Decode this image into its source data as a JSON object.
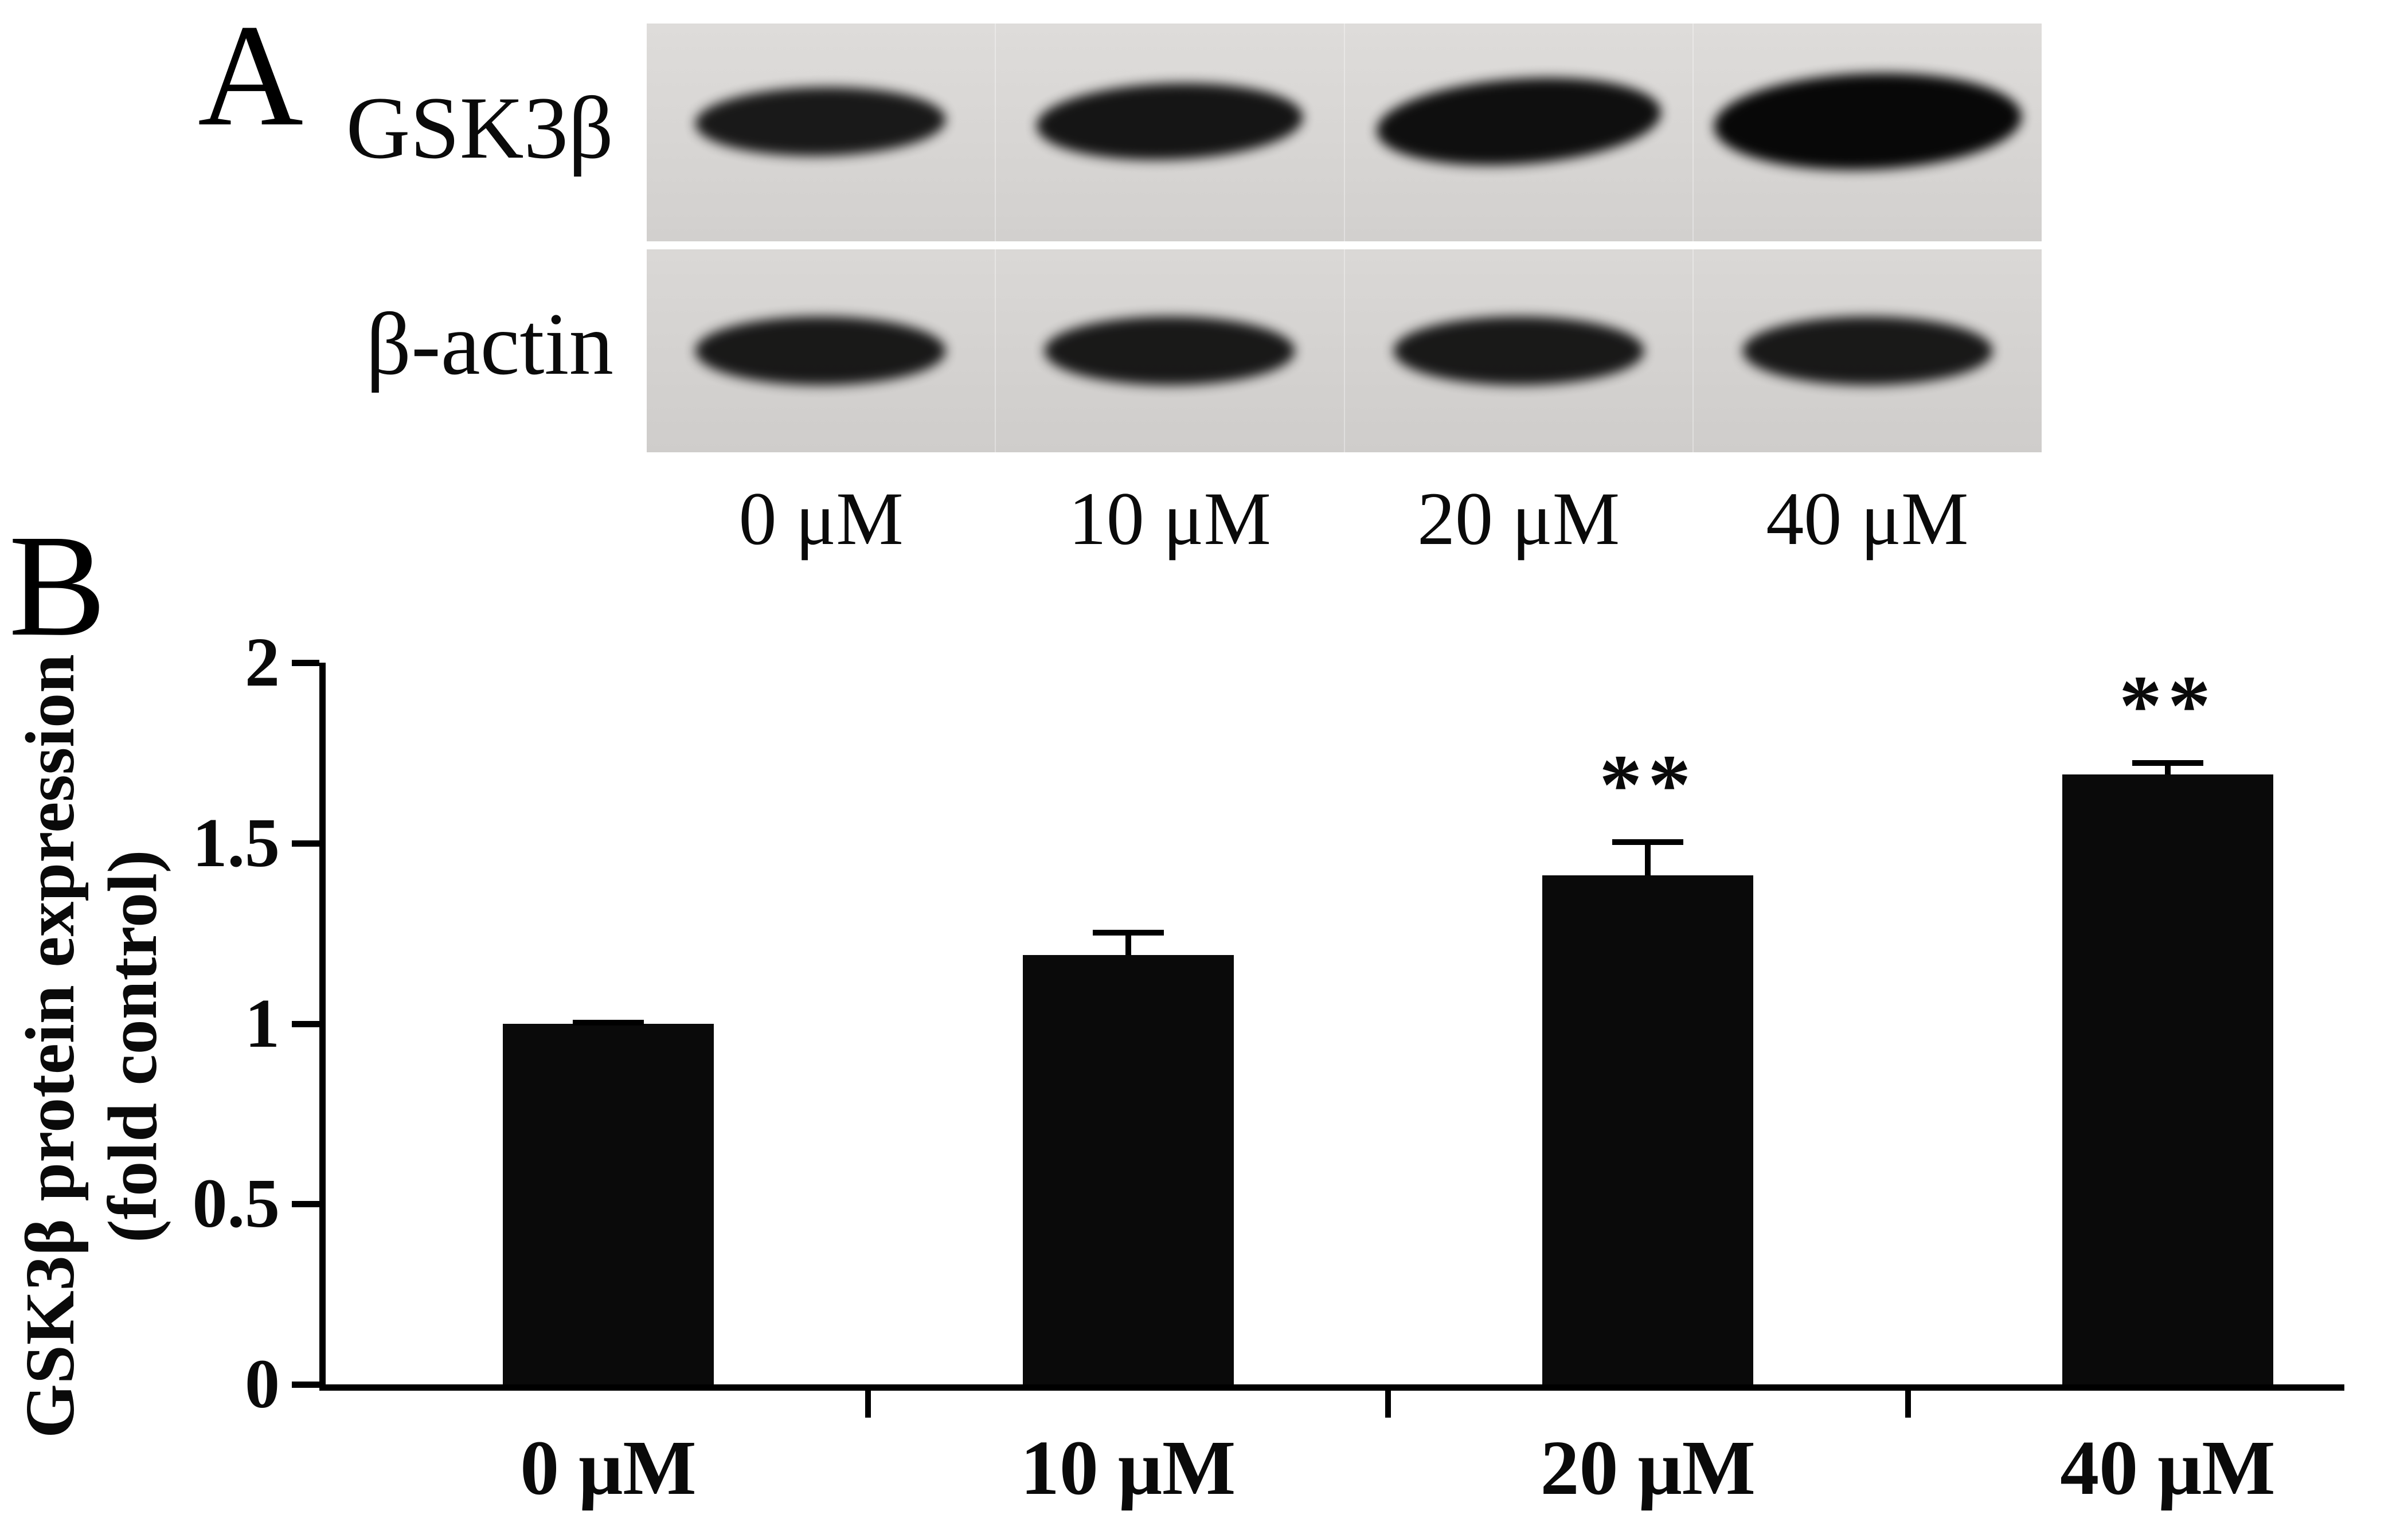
{
  "figure": {
    "panel_a": {
      "label": "A",
      "bands": [
        {
          "row": "GSK3β",
          "relative_intensity": [
            1.0,
            1.19,
            1.41,
            1.69
          ]
        },
        {
          "row": "β-actin",
          "relative_intensity": [
            1.0,
            1.0,
            1.0,
            1.0
          ]
        }
      ],
      "lane_labels": [
        "0 μM",
        "10 μM",
        "20 μM",
        "40 μM"
      ]
    },
    "panel_b": {
      "label": "B"
    }
  },
  "chart_data": {
    "type": "bar",
    "categories": [
      "0 μM",
      "10 μM",
      "20 μM",
      "40 μM"
    ],
    "values": [
      1.0,
      1.19,
      1.41,
      1.69
    ],
    "errors": [
      0.01,
      0.07,
      0.1,
      0.04
    ],
    "significance": [
      "",
      "",
      "**",
      "**"
    ],
    "ylabel": "GSK3β protein expression (fold control)",
    "ylabel_lines": [
      "GSK3β protein expression",
      "(fold control)"
    ],
    "ylim": [
      0,
      2
    ],
    "yticks": [
      {
        "v": 0,
        "label": "0"
      },
      {
        "v": 0.5,
        "label": "0.5"
      },
      {
        "v": 1,
        "label": "1"
      },
      {
        "v": 1.5,
        "label": "1.5"
      },
      {
        "v": 2,
        "label": "2"
      }
    ],
    "bar_color": "#0a0a0a",
    "grid": false,
    "legend": false
  }
}
